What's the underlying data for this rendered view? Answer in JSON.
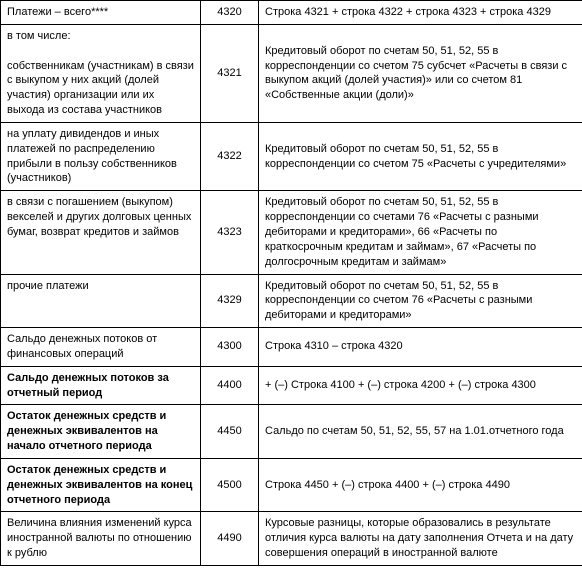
{
  "rows": [
    {
      "label": "Платежи – всего****",
      "code": "4320",
      "desc": "Строка 4321 + строка 4322 + строка 4323 + строка 4329",
      "bold": false
    },
    {
      "label": "в том числе:\n\nсобственникам (участникам) в связи с выкупом у них акций (долей участия) организации или их выхода из состава участников",
      "code": "4321",
      "desc": "Кредитовый оборот по счетам 50, 51, 52, 55 в корреспонденции со счетом 75 субсчет «Расчеты в связи с выкупом акций (долей участия)» или со счетом 81 «Собственные акции (доли)»",
      "bold": false
    },
    {
      "label": "на уплату дивидендов и иных платежей по распределению прибыли в пользу собственников (участников)",
      "code": "4322",
      "desc": "Кредитовый оборот по счетам 50, 51, 52, 55 в корреспонденции со счетом 75 «Расчеты с учредителями»",
      "bold": false
    },
    {
      "label": "в связи с погашением (выкупом) векселей и других долговых ценных бумаг, возврат кредитов и займов",
      "code": "4323",
      "desc": "Кредитовый оборот по счетам 50, 51, 52, 55 в корреспонденции со счетами 76 «Расчеты с разными дебиторами и кредиторами», 66 «Расчеты по краткосрочным кредитам и займам», 67 «Расчеты по долгосрочным кредитам и займам»",
      "bold": false
    },
    {
      "label": "прочие платежи",
      "code": "4329",
      "desc": "Кредитовый оборот по счетам 50, 51, 52, 55 в корреспонденции со счетом 76 «Расчеты с разными дебиторами и кредиторами»",
      "bold": false
    },
    {
      "label": "Сальдо денежных потоков от финансовых операций",
      "code": "4300",
      "desc": "Строка 4310 – строка 4320",
      "bold": false
    },
    {
      "label": "Сальдо денежных потоков за отчетный период",
      "code": "4400",
      "desc": "+ (–) Строка 4100 + (–) строка 4200 + (–) строка 4300",
      "bold": true
    },
    {
      "label": "Остаток денежных средств и денежных эквивалентов на начало отчетного периода",
      "code": "4450",
      "desc": "Сальдо по счетам 50, 51, 52, 55, 57 на 1.01.отчетного года",
      "bold": true
    },
    {
      "label": "Остаток денежных средств и денежных эквивалентов на конец отчетного периода",
      "code": "4500",
      "desc": "Строка 4450 + (–) строка 4400 + (–) строка 4490",
      "bold": true
    },
    {
      "label": "Величина влияния изменений курса иностранной валюты по отношению к рублю",
      "code": "4490",
      "desc": "Курсовые разницы, которые образовались в результате отличия курса валюты на дату заполнения Отчета и на дату совершения операций в иностранной валюте",
      "bold": false
    }
  ]
}
